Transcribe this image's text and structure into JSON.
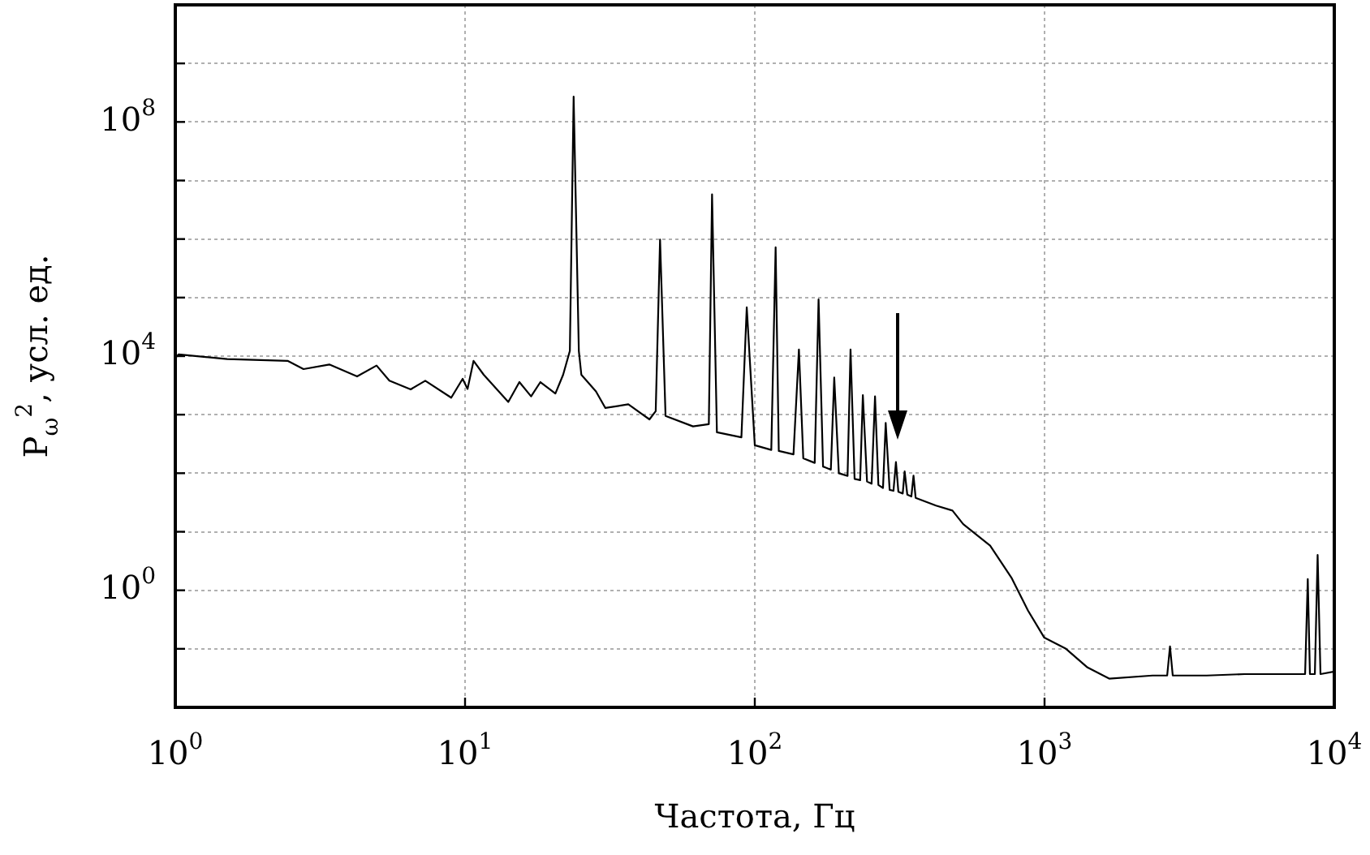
{
  "chart_data": {
    "type": "line",
    "xlabel": "Частота, Гц",
    "ylabel": "P$_{ω}$$^{2}$, усл. ед.",
    "log": "xy",
    "grid": true,
    "legend": false,
    "marker": "none",
    "line_style": "solid",
    "xlim": [
      1,
      10000
    ],
    "ylim": [
      0.01,
      10000000000
    ],
    "xticks": [
      {
        "value": 1,
        "label": "10$^{0}$"
      },
      {
        "value": 10,
        "label": "10$^{1}$"
      },
      {
        "value": 100,
        "label": "10$^{2}$"
      },
      {
        "value": 1000,
        "label": "10$^{3}$"
      },
      {
        "value": 10000,
        "label": "10$^{4}$"
      }
    ],
    "yticks": [
      {
        "value": 0.01,
        "label": null
      },
      {
        "value": 0.1,
        "label": null
      },
      {
        "value": 1,
        "label": "10$^{0}$"
      },
      {
        "value": 10,
        "label": null
      },
      {
        "value": 100,
        "label": null
      },
      {
        "value": 1000,
        "label": null
      },
      {
        "value": 10000,
        "label": "10$^{4}$"
      },
      {
        "value": 100000,
        "label": null
      },
      {
        "value": 1000000,
        "label": null
      },
      {
        "value": 10000000,
        "label": null
      },
      {
        "value": 100000000,
        "label": "10$^{8}$"
      },
      {
        "value": 1000000000,
        "label": null
      },
      {
        "value": 10000000000,
        "label": null
      }
    ],
    "series": [
      {
        "color": "#000000",
        "x": [
          1.0,
          1.026,
          1.51,
          2.44,
          2.77,
          3.4,
          4.24,
          4.95,
          5.48,
          6.49,
          7.29,
          8.96,
          9.81,
          10.2,
          10.7,
          11.6,
          14.1,
          15.4,
          16.9,
          18.2,
          20.5,
          21.8,
          23.0,
          23.7,
          24.7,
          25.2,
          28.3,
          30.5,
          36.6,
          43.3,
          45.5,
          47.1,
          49.2,
          61.2,
          69.4,
          71.2,
          74.0,
          89.9,
          93.8,
          100,
          114,
          118,
          121,
          136,
          142,
          147,
          161,
          166,
          172,
          183,
          188,
          195,
          209,
          214,
          221,
          231,
          236,
          244,
          253,
          260,
          267,
          277,
          283,
          292,
          301,
          307,
          313,
          324,
          329,
          336,
          347,
          353,
          359,
          422,
          481,
          524,
          649,
          771,
          877,
          998,
          1186,
          1407,
          1671,
          2360,
          2650,
          2710,
          2770,
          3630,
          4900,
          6620,
          7930,
          8100,
          8240,
          8570,
          8760,
          8960,
          10000
        ],
        "values": [
          9300,
          10700,
          8900,
          8300,
          6000,
          7200,
          4500,
          6900,
          3800,
          2700,
          3800,
          1950,
          4100,
          2750,
          8300,
          4800,
          1650,
          3600,
          2050,
          3600,
          2300,
          4800,
          12300,
          270000000,
          12300,
          4800,
          2500,
          1300,
          1500,
          830,
          1150,
          980000,
          950,
          630,
          690,
          5800000,
          500,
          410,
          68000,
          300,
          250,
          720000,
          240,
          210,
          13000,
          180,
          150,
          93000,
          130,
          115,
          4300,
          100,
          90,
          13000,
          80,
          76,
          2150,
          72,
          66,
          2050,
          63,
          56,
          720,
          52,
          50,
          155,
          48,
          45,
          107,
          43,
          40,
          91,
          38,
          28,
          23,
          13.5,
          5.8,
          1.6,
          0.45,
          0.155,
          0.1,
          0.048,
          0.031,
          0.035,
          0.035,
          0.11,
          0.035,
          0.035,
          0.037,
          0.037,
          0.037,
          1.55,
          0.037,
          0.037,
          4.0,
          0.037,
          0.041
        ]
      }
    ]
  }
}
